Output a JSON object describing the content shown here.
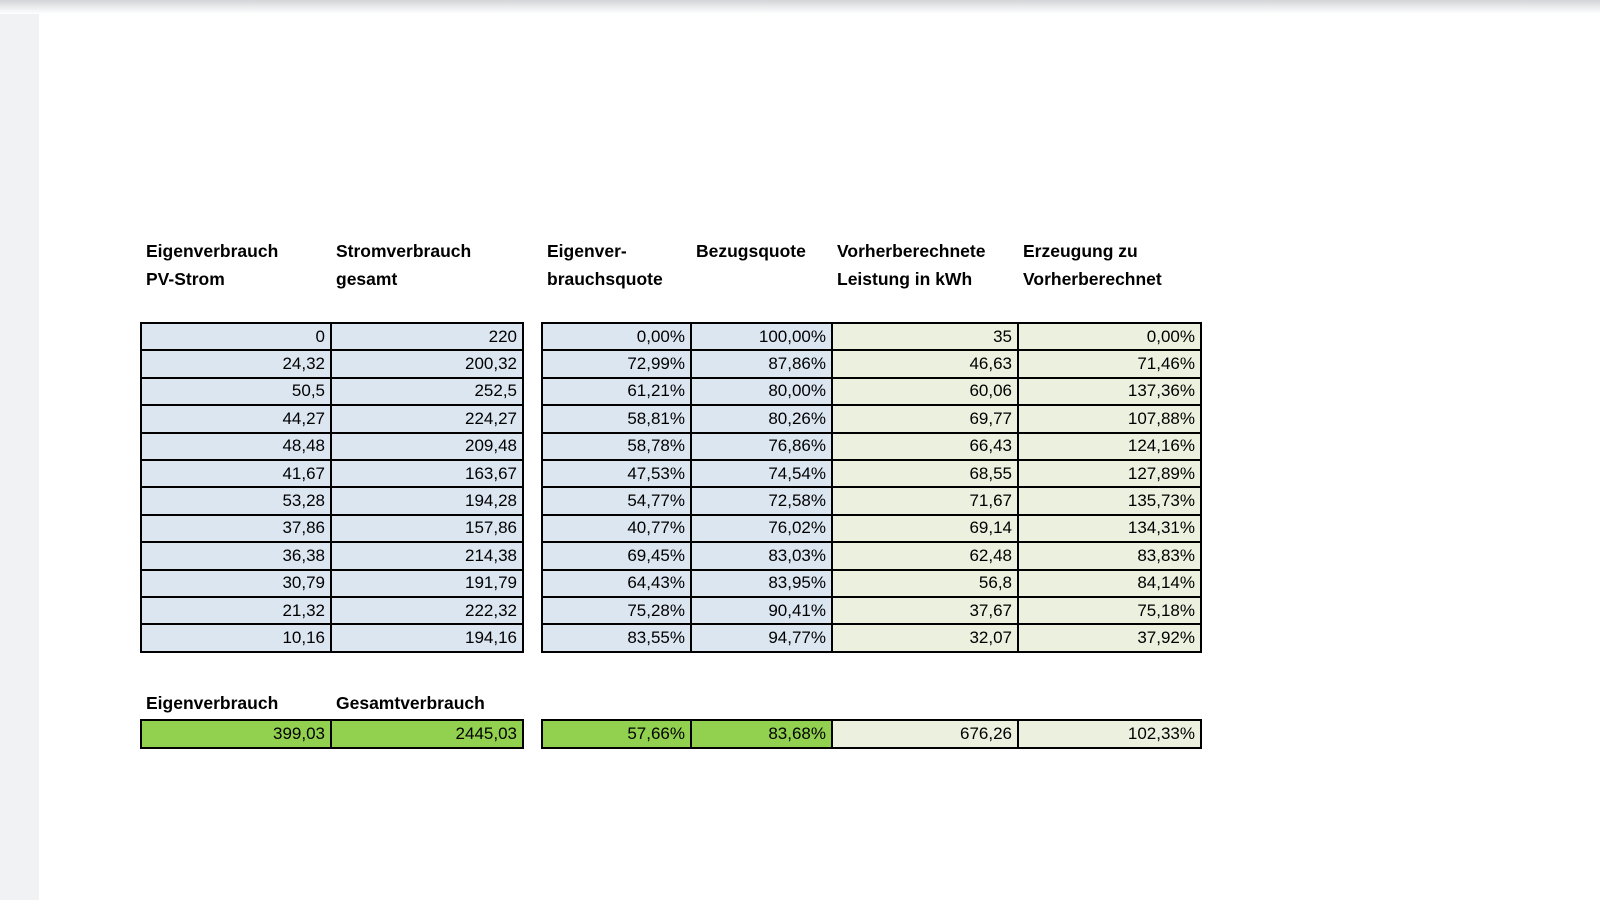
{
  "page": {
    "background": "#ffffff",
    "left_strip_color": "#f0f2f4",
    "top_shade_color": "#d2d4d7"
  },
  "colors": {
    "cell_blue": "#dce6f1",
    "cell_light_green": "#ebf1de",
    "cell_bright_green": "#92d050",
    "border": "#000000"
  },
  "main_table": {
    "headers": [
      {
        "line1": "Eigenverbrauch",
        "line2": "PV-Strom"
      },
      {
        "line1": "Stromverbrauch",
        "line2": "gesamt"
      },
      {
        "line1": "Eigenver-",
        "line2": "brauchsquote"
      },
      {
        "line1": "Bezugsquote",
        "line2": ""
      },
      {
        "line1": "Vorherberechnete",
        "line2": "Leistung in kWh"
      },
      {
        "line1": "Erzeugung zu",
        "line2": "Vorherberechnet"
      }
    ],
    "rows": [
      [
        "0",
        "220",
        "0,00%",
        "100,00%",
        "35",
        "0,00%"
      ],
      [
        "24,32",
        "200,32",
        "72,99%",
        "87,86%",
        "46,63",
        "71,46%"
      ],
      [
        "50,5",
        "252,5",
        "61,21%",
        "80,00%",
        "60,06",
        "137,36%"
      ],
      [
        "44,27",
        "224,27",
        "58,81%",
        "80,26%",
        "69,77",
        "107,88%"
      ],
      [
        "48,48",
        "209,48",
        "58,78%",
        "76,86%",
        "66,43",
        "124,16%"
      ],
      [
        "41,67",
        "163,67",
        "47,53%",
        "74,54%",
        "68,55",
        "127,89%"
      ],
      [
        "53,28",
        "194,28",
        "54,77%",
        "72,58%",
        "71,67",
        "135,73%"
      ],
      [
        "37,86",
        "157,86",
        "40,77%",
        "76,02%",
        "69,14",
        "134,31%"
      ],
      [
        "36,38",
        "214,38",
        "69,45%",
        "83,03%",
        "62,48",
        "83,83%"
      ],
      [
        "30,79",
        "191,79",
        "64,43%",
        "83,95%",
        "56,8",
        "84,14%"
      ],
      [
        "21,32",
        "222,32",
        "75,28%",
        "90,41%",
        "37,67",
        "75,18%"
      ],
      [
        "10,16",
        "194,16",
        "83,55%",
        "94,77%",
        "32,07",
        "37,92%"
      ]
    ]
  },
  "summary": {
    "headers": [
      "Eigenverbrauch",
      "Gesamtverbrauch"
    ],
    "row": [
      "399,03",
      "2445,03",
      "57,66%",
      "83,68%",
      "676,26",
      "102,33%"
    ]
  }
}
